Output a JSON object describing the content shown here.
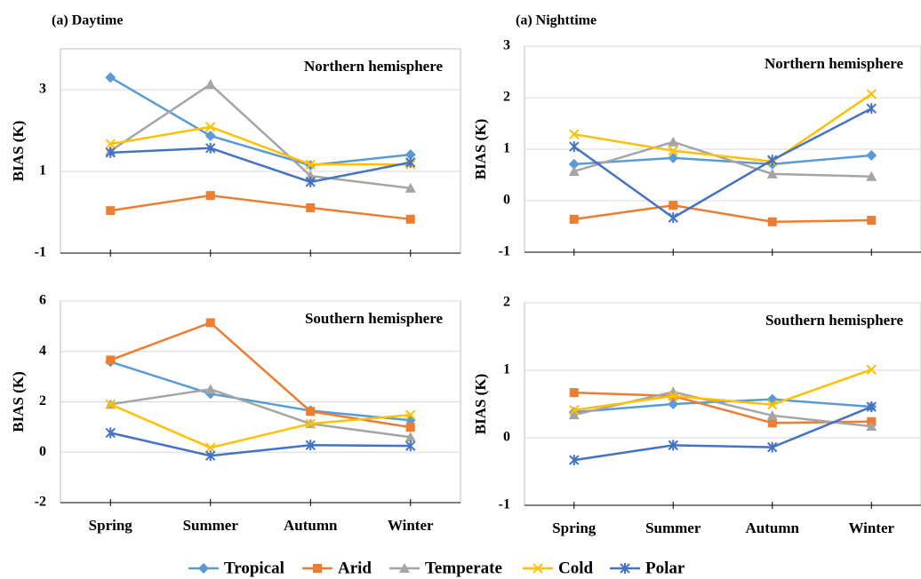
{
  "chart_data": [
    {
      "type": "line",
      "title": "(a) Daytime",
      "annotation": "Northern hemisphere",
      "y_label": "BIAS (K)",
      "categories": [
        null,
        null,
        null,
        null
      ],
      "ylim": [
        -1,
        4
      ],
      "yticks": [
        -1,
        1,
        3
      ],
      "grid": true,
      "series": [
        {
          "name": "Tropical",
          "color": "#5b9bd5",
          "marker": "diamond",
          "values": [
            3.3,
            1.87,
            1.15,
            1.41
          ]
        },
        {
          "name": "Arid",
          "color": "#ed7d31",
          "marker": "square",
          "values": [
            0.04,
            0.41,
            0.11,
            -0.17
          ]
        },
        {
          "name": "Temperate",
          "color": "#a5a5a5",
          "marker": "triangle",
          "values": [
            1.5,
            3.13,
            0.89,
            0.59
          ]
        },
        {
          "name": "Cold",
          "color": "#ffc000",
          "marker": "x",
          "values": [
            1.67,
            2.09,
            1.17,
            1.17
          ]
        },
        {
          "name": "Polar",
          "color": "#4472c4",
          "marker": "star",
          "values": [
            1.46,
            1.57,
            0.74,
            1.22
          ]
        }
      ]
    },
    {
      "type": "line",
      "title": "(a) Nighttime",
      "annotation": "Northern hemisphere",
      "y_label": "BIAS (K)",
      "categories": [
        null,
        null,
        null,
        null
      ],
      "ylim": [
        -1,
        3
      ],
      "yticks": [
        -1,
        0,
        1,
        2,
        3
      ],
      "grid": true,
      "series": [
        {
          "color": "#5b9bd5",
          "marker": "diamond",
          "values": [
            0.71,
            0.83,
            0.71,
            0.88
          ]
        },
        {
          "color": "#ed7d31",
          "marker": "square",
          "values": [
            -0.36,
            -0.09,
            -0.41,
            -0.38
          ]
        },
        {
          "color": "#a5a5a5",
          "marker": "triangle",
          "values": [
            0.57,
            1.14,
            0.52,
            0.47
          ]
        },
        {
          "color": "#ffc000",
          "marker": "x",
          "values": [
            1.29,
            0.97,
            0.76,
            2.07
          ]
        },
        {
          "color": "#4472c4",
          "marker": "star",
          "values": [
            1.05,
            -0.33,
            0.79,
            1.79
          ]
        }
      ]
    },
    {
      "type": "line",
      "annotation": "Southern hemisphere",
      "y_label": "BIAS (K)",
      "categories": [
        "Spring",
        "Summer",
        "Autumn",
        "Winter"
      ],
      "ylim": [
        -2,
        6
      ],
      "yticks": [
        -2,
        0,
        2,
        4,
        6
      ],
      "grid": true,
      "series": [
        {
          "color": "#5b9bd5",
          "marker": "diamond",
          "values": [
            3.59,
            2.32,
            1.65,
            1.27
          ]
        },
        {
          "color": "#ed7d31",
          "marker": "square",
          "values": [
            3.66,
            5.14,
            1.62,
            0.99
          ]
        },
        {
          "color": "#a5a5a5",
          "marker": "triangle",
          "values": [
            1.9,
            2.5,
            1.13,
            0.6
          ]
        },
        {
          "color": "#ffc000",
          "marker": "x",
          "values": [
            1.9,
            0.18,
            1.13,
            1.48
          ]
        },
        {
          "color": "#4472c4",
          "marker": "star",
          "values": [
            0.77,
            -0.14,
            0.28,
            0.25
          ]
        }
      ]
    },
    {
      "type": "line",
      "annotation": "Southern hemisphere",
      "y_label": "BIAS (K)",
      "categories": [
        "Spring",
        "Summer",
        "Autumn",
        "Winter"
      ],
      "ylim": [
        -1,
        2
      ],
      "yticks": [
        -1,
        0,
        1,
        2
      ],
      "grid": true,
      "series": [
        {
          "color": "#5b9bd5",
          "marker": "diamond",
          "values": [
            0.38,
            0.5,
            0.57,
            0.46
          ]
        },
        {
          "color": "#ed7d31",
          "marker": "square",
          "values": [
            0.67,
            0.62,
            0.22,
            0.24
          ]
        },
        {
          "color": "#a5a5a5",
          "marker": "triangle",
          "values": [
            0.34,
            0.68,
            0.33,
            0.17
          ]
        },
        {
          "color": "#ffc000",
          "marker": "x",
          "values": [
            0.41,
            0.62,
            0.49,
            1.01
          ]
        },
        {
          "color": "#4472c4",
          "marker": "star",
          "values": [
            -0.33,
            -0.11,
            -0.14,
            0.46
          ]
        }
      ]
    }
  ]
}
